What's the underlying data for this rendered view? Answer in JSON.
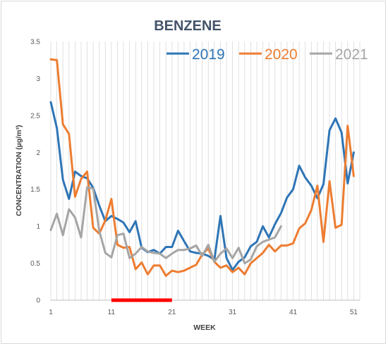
{
  "chart_data": {
    "type": "line",
    "title": "BENZENE",
    "xlabel": "WEEK",
    "ylabel": "CONCENTRATION (µg/m³)",
    "xlim": [
      1,
      52
    ],
    "ylim": [
      0,
      3.5
    ],
    "x_ticks": [
      1,
      11,
      21,
      31,
      41,
      51
    ],
    "y_ticks": [
      "0",
      "0.5",
      "1",
      "1.5",
      "2",
      "2.5",
      "3",
      "3.5"
    ],
    "grid": "vertical lines at each week",
    "legend": "top-right",
    "highlight_bar": {
      "x_start": 11,
      "x_end": 21,
      "y": 0,
      "color": "#ff0000"
    },
    "series": [
      {
        "name": "2019",
        "color": "#2e75b6",
        "x": [
          1,
          2,
          3,
          4,
          5,
          6,
          7,
          8,
          9,
          10,
          11,
          12,
          13,
          14,
          15,
          16,
          17,
          18,
          19,
          20,
          21,
          22,
          23,
          24,
          25,
          26,
          27,
          28,
          29,
          30,
          31,
          32,
          33,
          34,
          35,
          36,
          37,
          38,
          39,
          40,
          41,
          42,
          43,
          44,
          45,
          46,
          47,
          48,
          49,
          50,
          51
        ],
        "values": [
          2.68,
          2.33,
          1.63,
          1.37,
          1.74,
          1.68,
          1.65,
          1.52,
          1.28,
          1.07,
          1.14,
          1.1,
          1.05,
          0.92,
          1.07,
          0.71,
          0.65,
          0.68,
          0.63,
          0.72,
          0.72,
          0.94,
          0.8,
          0.66,
          0.64,
          0.63,
          0.6,
          0.55,
          1.14,
          0.57,
          0.41,
          0.52,
          0.58,
          0.73,
          0.79,
          1.0,
          0.85,
          1.03,
          1.18,
          1.39,
          1.5,
          1.82,
          1.66,
          1.55,
          1.38,
          1.57,
          2.3,
          2.46,
          2.27,
          1.58,
          2.0
        ]
      },
      {
        "name": "2020",
        "color": "#ed7d31",
        "x": [
          1,
          2,
          3,
          4,
          5,
          6,
          7,
          8,
          9,
          10,
          11,
          12,
          13,
          14,
          15,
          16,
          17,
          18,
          19,
          20,
          21,
          22,
          23,
          24,
          25,
          26,
          27,
          28,
          29,
          30,
          31,
          32,
          33,
          34,
          35,
          36,
          37,
          38,
          39,
          40,
          41,
          42,
          43,
          44,
          45,
          46,
          47,
          48,
          49,
          50,
          51
        ],
        "values": [
          3.26,
          3.25,
          2.38,
          2.25,
          1.4,
          1.64,
          1.74,
          0.98,
          0.9,
          1.08,
          1.37,
          0.75,
          0.71,
          0.72,
          0.42,
          0.51,
          0.35,
          0.47,
          0.47,
          0.33,
          0.4,
          0.38,
          0.4,
          0.44,
          0.48,
          0.62,
          0.7,
          0.52,
          0.44,
          0.47,
          0.38,
          0.44,
          0.35,
          0.5,
          0.57,
          0.64,
          0.75,
          0.66,
          0.74,
          0.74,
          0.77,
          0.97,
          1.04,
          1.22,
          1.55,
          0.79,
          1.61,
          0.98,
          1.02,
          2.36,
          1.68
        ]
      },
      {
        "name": "2021",
        "color": "#a5a5a5",
        "x": [
          1,
          2,
          3,
          4,
          5,
          6,
          7,
          8,
          9,
          10,
          11,
          12,
          13,
          14,
          15,
          16,
          17,
          18,
          19,
          20,
          21,
          22,
          23,
          24,
          25,
          26,
          27,
          28,
          29,
          30,
          31,
          32,
          33,
          34,
          35,
          36,
          37,
          38,
          39
        ],
        "values": [
          0.95,
          1.17,
          0.88,
          1.23,
          1.12,
          0.85,
          1.53,
          1.51,
          0.94,
          0.64,
          0.58,
          0.88,
          0.9,
          0.57,
          0.63,
          0.72,
          0.66,
          0.64,
          0.63,
          0.57,
          0.63,
          0.68,
          0.68,
          0.7,
          0.74,
          0.6,
          0.75,
          0.52,
          0.63,
          0.7,
          0.57,
          0.71,
          0.5,
          0.55,
          0.73,
          0.79,
          0.82,
          0.85,
          1.0
        ]
      }
    ]
  }
}
